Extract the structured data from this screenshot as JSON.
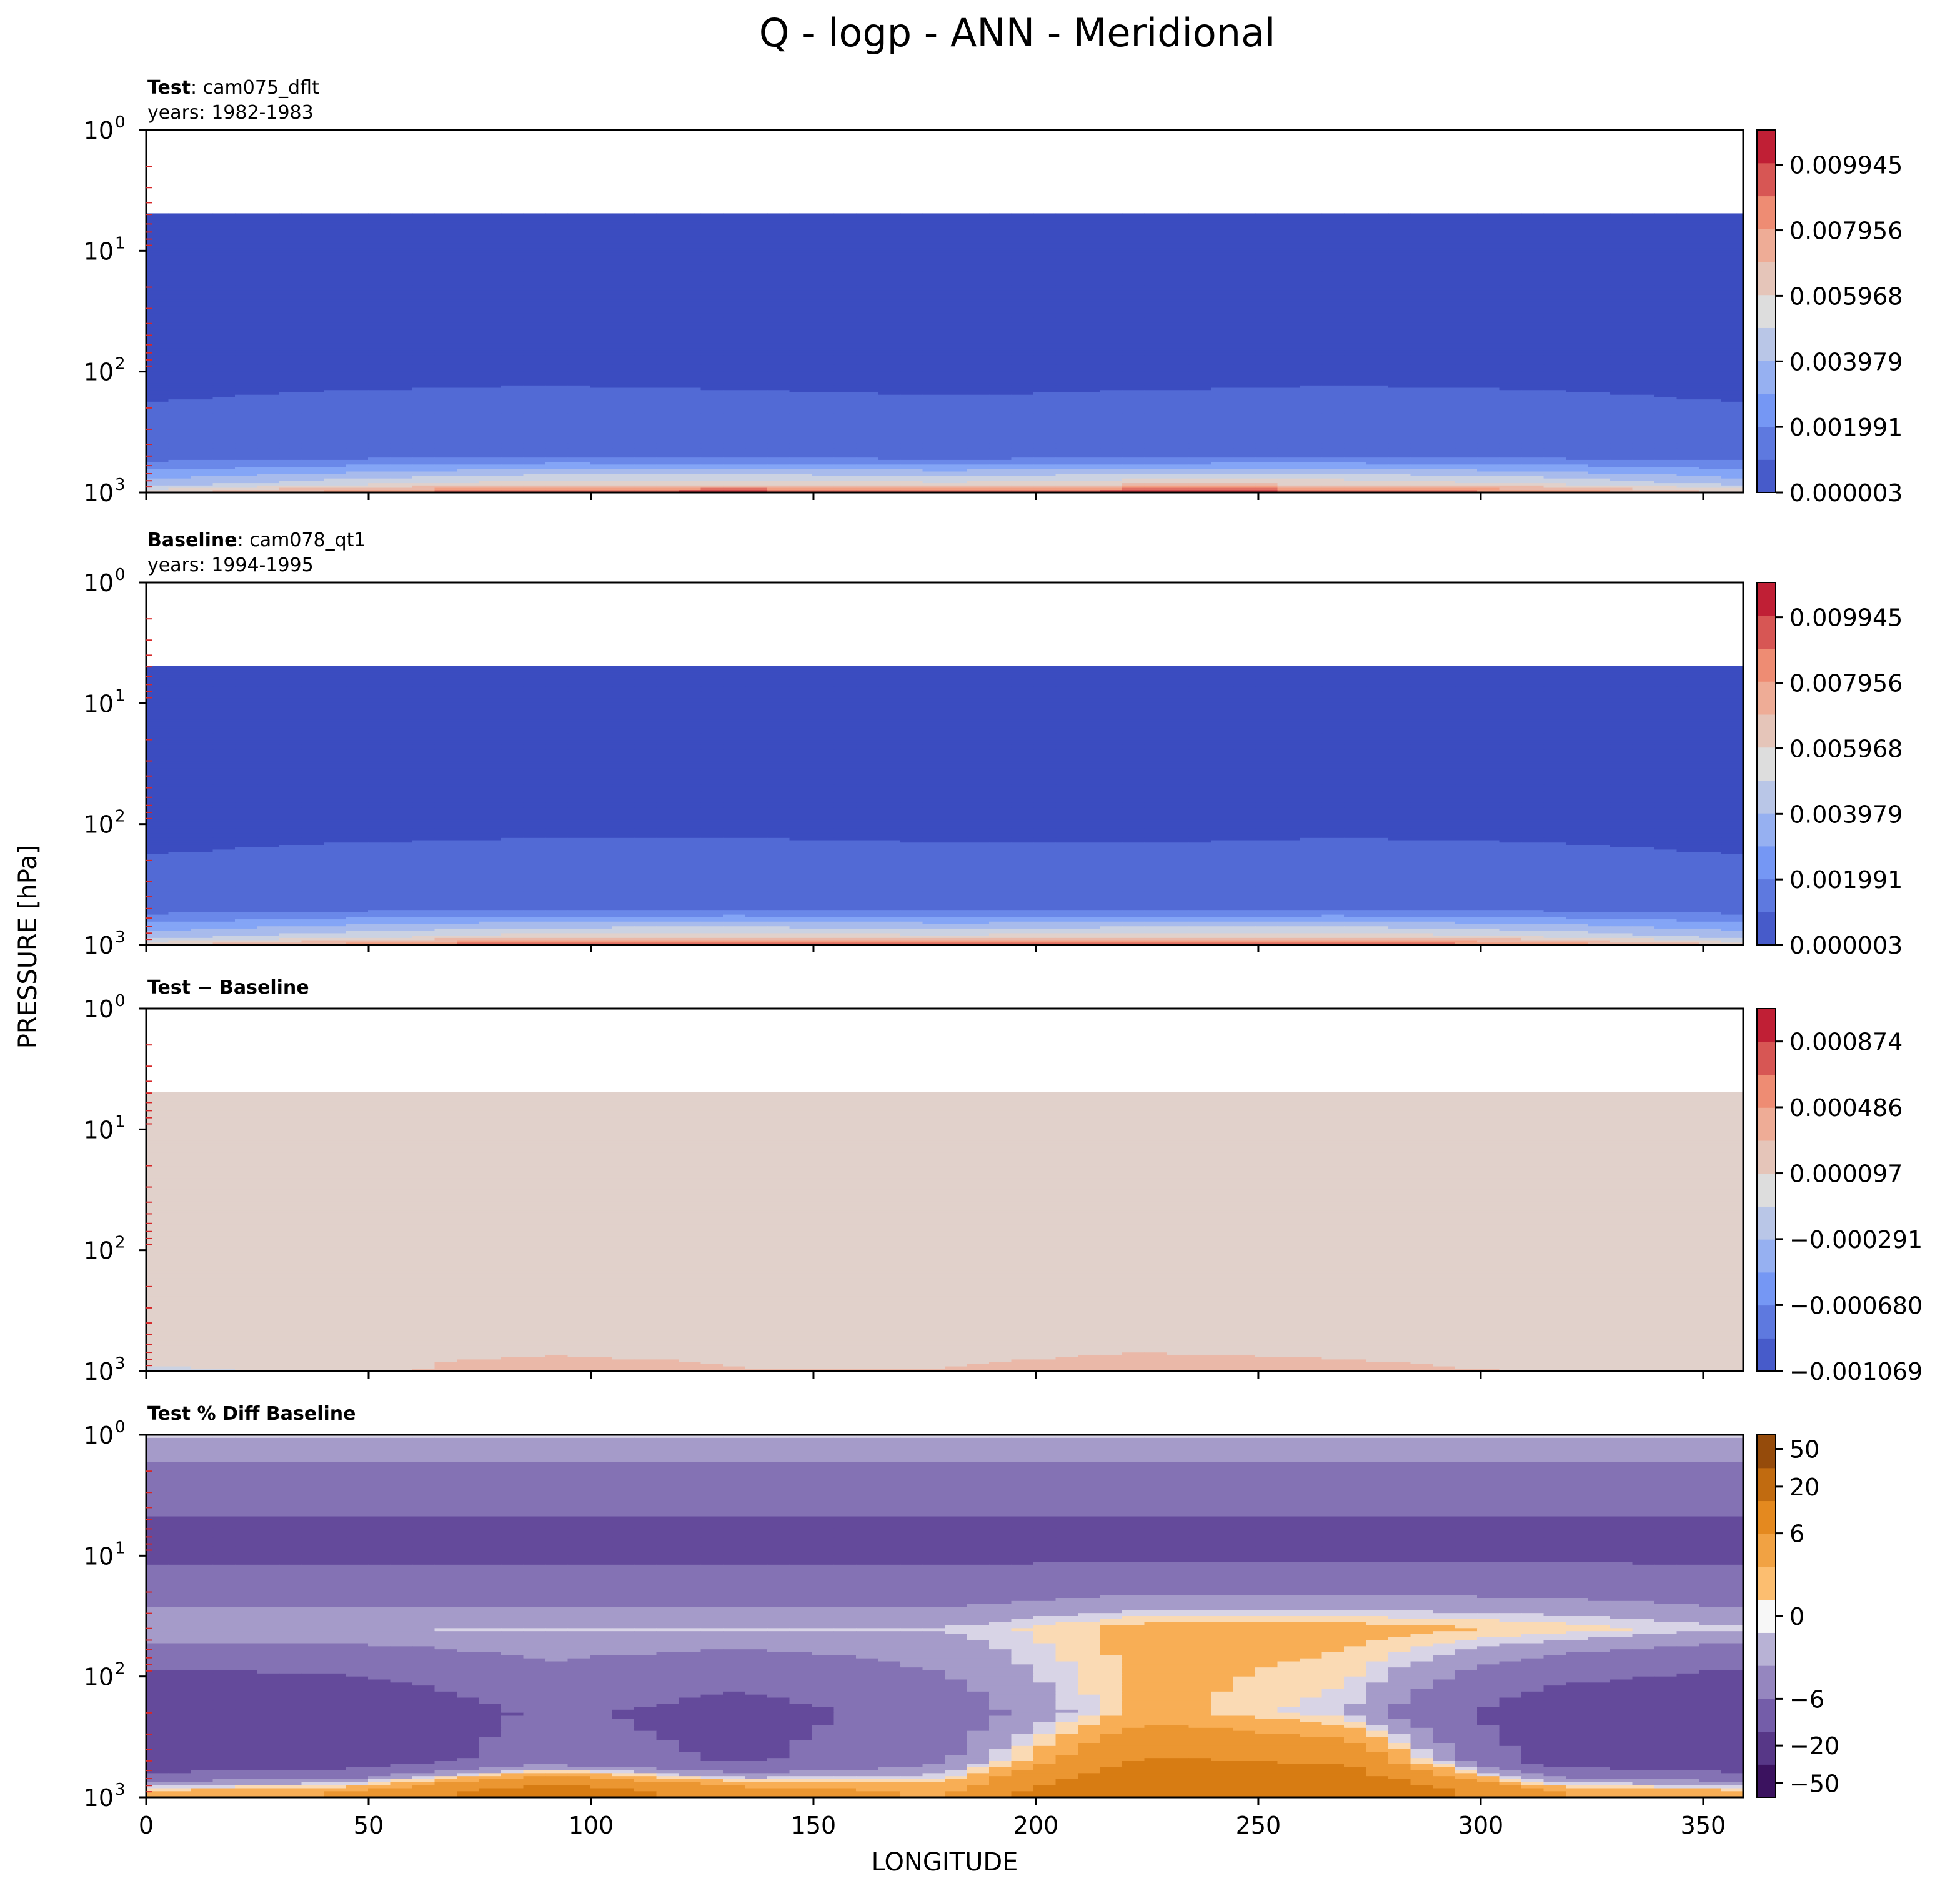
{
  "figure": {
    "title": "Q - logp - ANN - Meridional"
  },
  "chart_data": [
    {
      "type": "heatmap",
      "panel_title_bold": "Test",
      "panel_title_rest": ": cam075_dflt",
      "panel_subtitle": "years: 1982-1983",
      "x": [
        0,
        45,
        90,
        135,
        180,
        225,
        270,
        315,
        359
      ],
      "y_levels_hPa": [
        5,
        50,
        500,
        850,
        1000
      ],
      "z_approx": [
        [
          3e-06,
          3e-06,
          3e-06,
          3e-06,
          3e-06,
          3e-06,
          3e-06,
          3e-06,
          3e-06
        ],
        [
          3e-06,
          3e-06,
          3e-06,
          3e-06,
          3e-06,
          3e-06,
          3e-06,
          3e-06,
          3e-06
        ],
        [
          0.0009,
          0.0011,
          0.0012,
          0.0011,
          0.001,
          0.0011,
          0.0012,
          0.0011,
          0.0009
        ],
        [
          0.004,
          0.0052,
          0.0062,
          0.0063,
          0.0058,
          0.0064,
          0.0063,
          0.0055,
          0.0042
        ],
        [
          0.0062,
          0.0082,
          0.0098,
          0.0101,
          0.0092,
          0.0102,
          0.0099,
          0.0085,
          0.0064
        ]
      ],
      "data_top_hPa": 4.9,
      "xlim": [
        0,
        359
      ],
      "ylim_hPa": [
        1000,
        1
      ],
      "yscale": "log",
      "yticks": [
        "10",
        "10",
        "10",
        "10"
      ],
      "yticks_exp": [
        "0",
        "1",
        "2",
        "3"
      ],
      "xticks": [],
      "colorbar": {
        "cmap": "coolwarm",
        "range": [
          3e-06,
          0.011
        ],
        "ticks": [
          3e-06,
          0.001991,
          0.003979,
          0.005968,
          0.007956,
          0.009945
        ],
        "tick_labels": [
          "0.000003",
          "0.001991",
          "0.003979",
          "0.005968",
          "0.007956",
          "0.009945"
        ]
      }
    },
    {
      "type": "heatmap",
      "panel_title_bold": "Baseline",
      "panel_title_rest": ": cam078_qt1",
      "panel_subtitle": "years: 1994-1995",
      "x": [
        0,
        45,
        90,
        135,
        180,
        225,
        270,
        315,
        359
      ],
      "y_levels_hPa": [
        5,
        50,
        500,
        850,
        1000
      ],
      "z_approx": [
        [
          3e-06,
          3e-06,
          3e-06,
          3e-06,
          3e-06,
          3e-06,
          3e-06,
          3e-06,
          3e-06
        ],
        [
          3e-06,
          3e-06,
          3e-06,
          3e-06,
          3e-06,
          3e-06,
          3e-06,
          3e-06,
          3e-06
        ],
        [
          0.0009,
          0.0011,
          0.0012,
          0.0012,
          0.0011,
          0.0011,
          0.0012,
          0.0011,
          0.0009
        ],
        [
          0.004,
          0.0051,
          0.006,
          0.0062,
          0.0057,
          0.0062,
          0.0062,
          0.0054,
          0.0041
        ],
        [
          0.0061,
          0.008,
          0.0096,
          0.0099,
          0.009,
          0.0099,
          0.0097,
          0.0083,
          0.0063
        ]
      ],
      "data_top_hPa": 4.9,
      "xlim": [
        0,
        359
      ],
      "ylim_hPa": [
        1000,
        1
      ],
      "yscale": "log",
      "yticks": [
        "10",
        "10",
        "10",
        "10"
      ],
      "yticks_exp": [
        "0",
        "1",
        "2",
        "3"
      ],
      "xticks": [],
      "colorbar": {
        "cmap": "coolwarm",
        "range": [
          3e-06,
          0.011
        ],
        "ticks": [
          3e-06,
          0.001991,
          0.003979,
          0.005968,
          0.007956,
          0.009945
        ],
        "tick_labels": [
          "0.000003",
          "0.001991",
          "0.003979",
          "0.005968",
          "0.007956",
          "0.009945"
        ]
      }
    },
    {
      "type": "heatmap",
      "panel_title_bold": "Test − Baseline",
      "panel_title_rest": "",
      "panel_subtitle": "",
      "x": [
        0,
        45,
        90,
        135,
        180,
        225,
        270,
        315,
        359
      ],
      "y_levels_hPa": [
        5,
        50,
        500,
        850,
        1000
      ],
      "z_approx": [
        [
          0.0,
          0.0,
          0.0,
          0.0,
          0.0,
          0.0,
          0.0,
          0.0,
          0.0
        ],
        [
          0.0,
          0.0,
          0.0,
          0.0,
          0.0,
          0.0,
          0.0,
          0.0,
          0.0
        ],
        [
          0.0,
          2e-05,
          3e-05,
          2e-05,
          2e-05,
          3e-05,
          2e-05,
          2e-05,
          0.0
        ],
        [
          5e-05,
          0.00015,
          0.00025,
          0.00018,
          0.00017,
          0.00028,
          0.00022,
          0.00012,
          4e-05
        ],
        [
          -0.0001,
          0.0001,
          0.00035,
          0.0002,
          0.0002,
          0.0004,
          0.00025,
          0.00018,
          5e-05
        ]
      ],
      "data_top_hPa": 4.9,
      "xlim": [
        0,
        359
      ],
      "ylim_hPa": [
        1000,
        1
      ],
      "yscale": "log",
      "yticks": [
        "10",
        "10",
        "10",
        "10"
      ],
      "yticks_exp": [
        "0",
        "1",
        "2",
        "3"
      ],
      "xticks": [],
      "colorbar": {
        "cmap": "coolwarm",
        "range": [
          -0.001069,
          0.001068
        ],
        "ticks": [
          -0.001069,
          -0.00068,
          -0.000291,
          9.7e-05,
          0.000486,
          0.000874
        ],
        "tick_labels": [
          "−0.001069",
          "−0.000680",
          "−0.000291",
          "0.000097",
          "0.000486",
          "0.000874"
        ]
      }
    },
    {
      "type": "heatmap",
      "panel_title_bold": "Test % Diff Baseline",
      "panel_title_rest": "",
      "panel_subtitle": "",
      "x": [
        0,
        45,
        90,
        135,
        180,
        225,
        270,
        315,
        359
      ],
      "y_levels_hPa": [
        1,
        8,
        40,
        200,
        500,
        900
      ],
      "z_approx": [
        [
          -1,
          -1,
          -1,
          -1,
          -1,
          -1,
          -1,
          -1,
          -1
        ],
        [
          -12,
          -12,
          -12,
          -12,
          -12,
          -12,
          -12,
          -12,
          -12
        ],
        [
          -1,
          -1,
          -1,
          -1,
          -1,
          2,
          2,
          1,
          -1
        ],
        [
          -18,
          -16,
          -8,
          -12,
          -6,
          2,
          -1,
          -14,
          -18
        ],
        [
          -16,
          -14,
          -6,
          -10,
          -4,
          10,
          8,
          -12,
          -16
        ],
        [
          2,
          4,
          14,
          6,
          3,
          20,
          16,
          4,
          2
        ]
      ],
      "xlim": [
        0,
        359
      ],
      "ylim_hPa": [
        1000,
        1
      ],
      "yscale": "log",
      "yticks": [
        "10",
        "10",
        "10",
        "10"
      ],
      "yticks_exp": [
        "0",
        "1",
        "2",
        "3"
      ],
      "xticks": [
        "0",
        "50",
        "100",
        "150",
        "200",
        "250",
        "300",
        "350"
      ],
      "colorbar": {
        "cmap": "PuOr_r",
        "range": [
          -70,
          70
        ],
        "ticks": [
          -50,
          -20,
          -6,
          0,
          6,
          20,
          50
        ],
        "tick_labels": [
          "−50",
          "−20",
          "−6",
          "0",
          "6",
          "20",
          "50"
        ]
      }
    }
  ],
  "axes": {
    "xlabel": "LONGITUDE",
    "ylabel": "PRESSURE [hPa]"
  }
}
